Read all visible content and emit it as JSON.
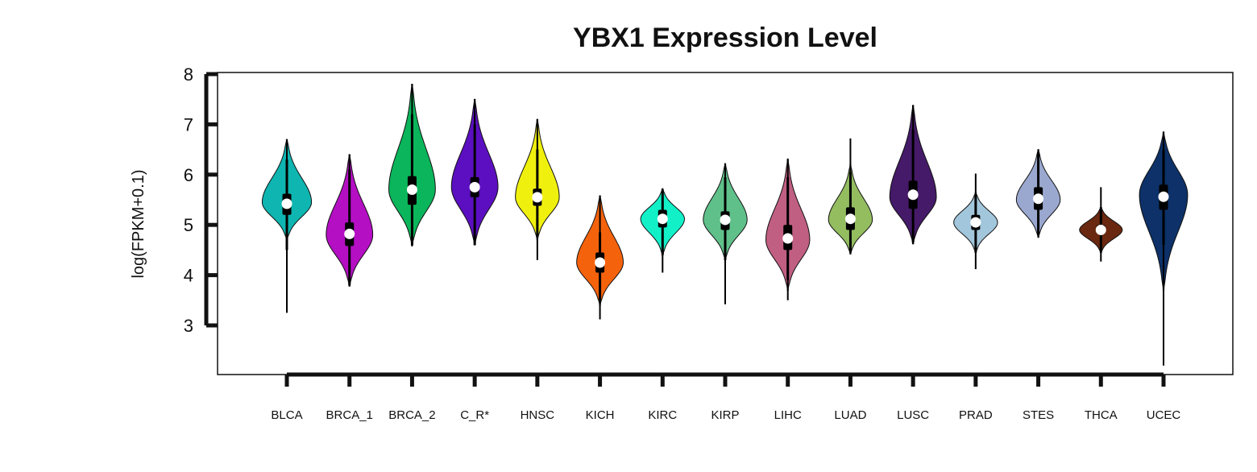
{
  "chart_data": {
    "type": "violin",
    "title": "YBX1 Expression Level",
    "xlabel": "",
    "ylabel": "log(FPKM+0.1)",
    "yticks": [
      3,
      4,
      5,
      6,
      7,
      8
    ],
    "ylim": [
      2,
      8
    ],
    "legend": "none",
    "grid": false,
    "series": [
      {
        "category": "BLCA",
        "color": "#0fb5b0",
        "min": 3.25,
        "max": 6.7,
        "q1": 5.2,
        "median": 5.42,
        "q3": 5.62,
        "whisker_low": 4.5,
        "whisker_high": 6.3,
        "violin_low": 4.7,
        "violin_high": 6.7,
        "mode": 5.45,
        "width": 0.9
      },
      {
        "category": "BRCA_1",
        "color": "#b40fc3",
        "min": 3.78,
        "max": 6.4,
        "q1": 4.58,
        "median": 4.82,
        "q3": 5.05,
        "whisker_low": 3.8,
        "whisker_high": 6.1,
        "violin_low": 3.78,
        "violin_high": 6.4,
        "mode": 4.8,
        "width": 0.85
      },
      {
        "category": "BRCA_2",
        "color": "#0bb55b",
        "min": 4.58,
        "max": 7.8,
        "q1": 5.4,
        "median": 5.7,
        "q3": 5.97,
        "whisker_low": 4.6,
        "whisker_high": 7.2,
        "violin_low": 4.58,
        "violin_high": 7.8,
        "mode": 5.7,
        "width": 0.85
      },
      {
        "category": "C_R*",
        "color": "#5c0fc0",
        "min": 4.6,
        "max": 7.5,
        "q1": 5.55,
        "median": 5.75,
        "q3": 5.95,
        "whisker_low": 4.6,
        "whisker_high": 7.0,
        "violin_low": 4.6,
        "violin_high": 7.5,
        "mode": 5.75,
        "width": 0.85
      },
      {
        "category": "HNSC",
        "color": "#f0f00f",
        "min": 4.3,
        "max": 7.1,
        "q1": 5.38,
        "median": 5.55,
        "q3": 5.72,
        "whisker_low": 4.75,
        "whisker_high": 6.5,
        "violin_low": 4.7,
        "violin_high": 7.1,
        "mode": 5.55,
        "width": 0.8
      },
      {
        "category": "KICH",
        "color": "#f5620c",
        "min": 3.12,
        "max": 5.58,
        "q1": 4.05,
        "median": 4.25,
        "q3": 4.45,
        "whisker_low": 3.5,
        "whisker_high": 4.85,
        "violin_low": 3.4,
        "violin_high": 5.58,
        "mode": 4.25,
        "width": 0.85
      },
      {
        "category": "KIRC",
        "color": "#12f0c8",
        "min": 4.05,
        "max": 5.72,
        "q1": 4.95,
        "median": 5.12,
        "q3": 5.3,
        "whisker_low": 4.4,
        "whisker_high": 5.7,
        "violin_low": 4.4,
        "violin_high": 5.72,
        "mode": 5.12,
        "width": 0.8
      },
      {
        "category": "KIRP",
        "color": "#5fc08a",
        "min": 3.42,
        "max": 6.22,
        "q1": 4.9,
        "median": 5.1,
        "q3": 5.27,
        "whisker_low": 4.3,
        "whisker_high": 5.95,
        "violin_low": 4.3,
        "violin_high": 6.22,
        "mode": 5.1,
        "width": 0.8
      },
      {
        "category": "LIHC",
        "color": "#c05f82",
        "min": 3.5,
        "max": 6.32,
        "q1": 4.5,
        "median": 4.73,
        "q3": 5.0,
        "whisker_low": 3.9,
        "whisker_high": 5.95,
        "violin_low": 3.7,
        "violin_high": 6.3,
        "mode": 4.7,
        "width": 0.8
      },
      {
        "category": "LUAD",
        "color": "#94bd60",
        "min": 4.42,
        "max": 6.72,
        "q1": 4.9,
        "median": 5.12,
        "q3": 5.35,
        "whisker_low": 4.45,
        "whisker_high": 6.05,
        "violin_low": 4.42,
        "violin_high": 6.2,
        "mode": 5.1,
        "width": 0.8
      },
      {
        "category": "LUSC",
        "color": "#451a68",
        "min": 4.62,
        "max": 7.38,
        "q1": 5.32,
        "median": 5.6,
        "q3": 5.88,
        "whisker_low": 4.65,
        "whisker_high": 6.9,
        "violin_low": 4.62,
        "violin_high": 7.38,
        "mode": 5.55,
        "width": 0.85
      },
      {
        "category": "PRAD",
        "color": "#a2c6db",
        "min": 4.12,
        "max": 6.02,
        "q1": 4.9,
        "median": 5.05,
        "q3": 5.2,
        "whisker_low": 4.45,
        "whisker_high": 5.6,
        "violin_low": 4.45,
        "violin_high": 5.65,
        "mode": 5.05,
        "width": 0.8
      },
      {
        "category": "STES",
        "color": "#9aa8d0",
        "min": 4.75,
        "max": 6.5,
        "q1": 5.3,
        "median": 5.52,
        "q3": 5.75,
        "whisker_low": 4.8,
        "whisker_high": 6.45,
        "violin_low": 4.75,
        "violin_high": 6.5,
        "mode": 5.5,
        "width": 0.8
      },
      {
        "category": "THCA",
        "color": "#6a2810",
        "min": 4.27,
        "max": 5.75,
        "q1": 4.82,
        "median": 4.9,
        "q3": 5.0,
        "whisker_low": 4.45,
        "whisker_high": 5.35,
        "violin_low": 4.45,
        "violin_high": 5.35,
        "mode": 4.9,
        "width": 0.78
      },
      {
        "category": "UCEC",
        "color": "#0d3168",
        "min": 2.2,
        "max": 6.85,
        "q1": 5.3,
        "median": 5.56,
        "q3": 5.8,
        "whisker_low": 4.6,
        "whisker_high": 6.5,
        "violin_low": 3.7,
        "violin_high": 6.85,
        "mode": 5.6,
        "width": 0.88
      }
    ]
  }
}
